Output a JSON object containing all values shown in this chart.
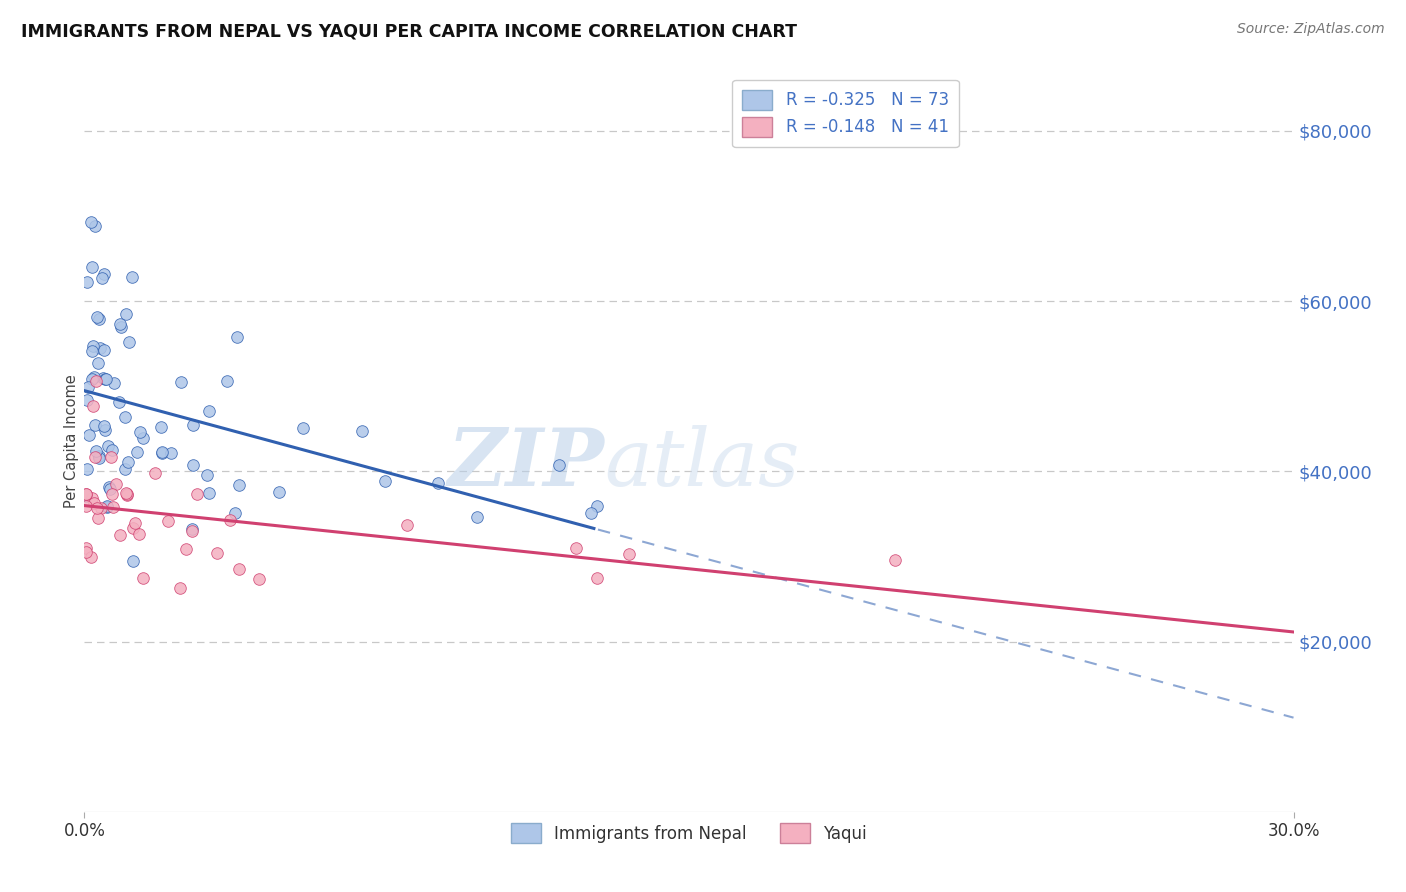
{
  "title": "IMMIGRANTS FROM NEPAL VS YAQUI PER CAPITA INCOME CORRELATION CHART",
  "source": "Source: ZipAtlas.com",
  "ylabel": "Per Capita Income",
  "watermark_zip": "ZIP",
  "watermark_atlas": "atlas",
  "series1": {
    "label": "Immigrants from Nepal",
    "color": "#aec6e8",
    "line_color": "#3060b0",
    "R": -0.325,
    "N": 73
  },
  "series2": {
    "label": "Yaqui",
    "color": "#f4b0c0",
    "line_color": "#d04070",
    "R": -0.148,
    "N": 41
  },
  "ytick_labels": [
    "$80,000",
    "$60,000",
    "$40,000",
    "$20,000"
  ],
  "ytick_values": [
    80000,
    60000,
    40000,
    20000
  ],
  "ylim": [
    0,
    87000
  ],
  "xlim": [
    0.0,
    0.3
  ],
  "xtick_values": [
    0.0,
    0.3
  ],
  "xtick_labels": [
    "0.0%",
    "30.0%"
  ],
  "grid_color": "#c8c8c8",
  "background_color": "#ffffff",
  "title_color": "#111111",
  "ytick_color": "#4472c4",
  "source_color": "#777777",
  "legend_R_color": "#4472c4",
  "legend_N_color": "#111111"
}
